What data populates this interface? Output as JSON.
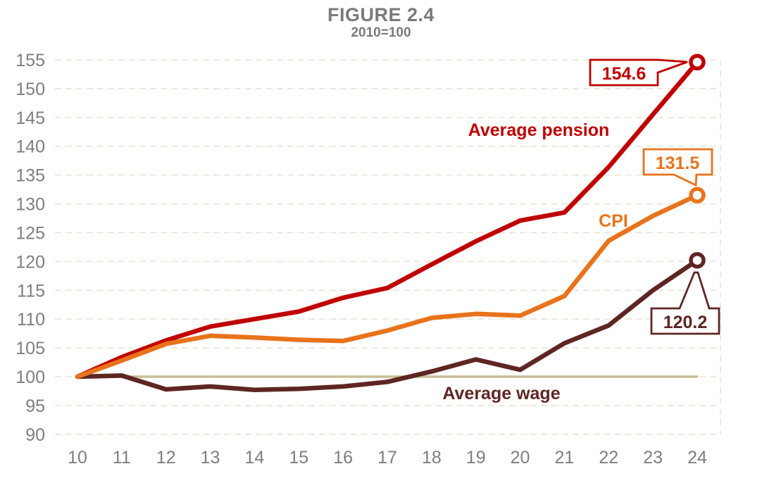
{
  "header": {
    "title": "FIGURE 2.4",
    "subtitle": "2010=100"
  },
  "chart_data": {
    "type": "line",
    "title": "FIGURE 2.4",
    "subtitle": "2010=100",
    "xlabel": "",
    "ylabel": "",
    "x": [
      10,
      11,
      12,
      13,
      14,
      15,
      16,
      17,
      18,
      19,
      20,
      21,
      22,
      23,
      24
    ],
    "x_tick_labels": [
      "10",
      "11",
      "12",
      "13",
      "14",
      "15",
      "16",
      "17",
      "18",
      "19",
      "20",
      "21",
      "22",
      "23",
      "24"
    ],
    "y_ticks": [
      155,
      150,
      145,
      140,
      135,
      130,
      125,
      120,
      115,
      110,
      105,
      100,
      95,
      90
    ],
    "ylim": [
      90,
      155
    ],
    "grid": "horizontal-dashed",
    "legend_position": "inline-labels",
    "baseline": {
      "value": 100,
      "color": "#c8be96"
    },
    "series": [
      {
        "name": "Average pension",
        "label": "Average pension",
        "color": "#c00000",
        "values": [
          100,
          103.4,
          106.3,
          108.7,
          110.0,
          111.3,
          113.7,
          115.4,
          119.5,
          123.5,
          127.1,
          128.5,
          136.4,
          145.5,
          154.6
        ],
        "end_value_label": "154.6"
      },
      {
        "name": "CPI",
        "label": "CPI",
        "color": "#e8731b",
        "values": [
          100,
          102.8,
          105.7,
          107.1,
          106.8,
          106.4,
          106.2,
          108.0,
          110.2,
          110.9,
          110.6,
          114.0,
          123.6,
          127.9,
          131.5
        ],
        "end_value_label": "131.5"
      },
      {
        "name": "Average wage",
        "label": "Average wage",
        "color": "#5e2623",
        "values": [
          100,
          100.2,
          97.8,
          98.3,
          97.7,
          97.9,
          98.3,
          99.1,
          100.9,
          103.0,
          101.2,
          105.8,
          108.9,
          115.0,
          120.2
        ],
        "end_value_label": "120.2"
      }
    ]
  },
  "colors": {
    "background": "#ffffff",
    "title_text": "#7a7a7a",
    "axis_text": "#7e7e7e",
    "gridline": "#e9e4d4",
    "baseline": "#c8be96"
  }
}
